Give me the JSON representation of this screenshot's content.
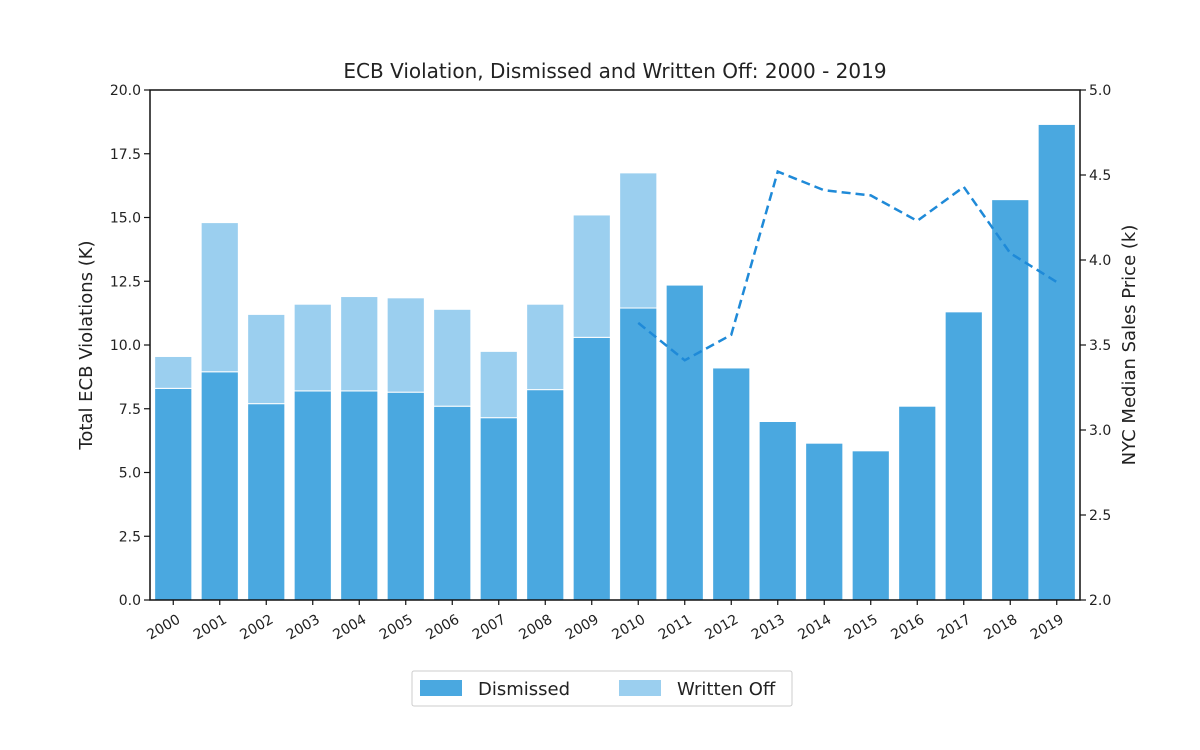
{
  "chart_data": {
    "type": "bar",
    "title": "ECB Violation, Dismissed and Written Off: 2000 - 2019",
    "xlabel": "",
    "ylabel": "Total ECB Violations (K)",
    "y2label": "NYC Median Sales Price (k)",
    "ylim": [
      0,
      20
    ],
    "y2lim": [
      2.0,
      5.0
    ],
    "yticks": [
      "0.0",
      "2.5",
      "5.0",
      "7.5",
      "10.0",
      "12.5",
      "15.0",
      "17.5",
      "20.0"
    ],
    "y2ticks": [
      "2.0",
      "2.5",
      "3.0",
      "3.5",
      "4.0",
      "4.5",
      "5.0"
    ],
    "categories": [
      "2000",
      "2001",
      "2002",
      "2003",
      "2004",
      "2005",
      "2006",
      "2007",
      "2008",
      "2009",
      "2010",
      "2011",
      "2012",
      "2013",
      "2014",
      "2015",
      "2016",
      "2017",
      "2018",
      "2019"
    ],
    "stacked": true,
    "grid": false,
    "legend_position": "bottom-center",
    "series": [
      {
        "name": "Dismissed",
        "color": "#4aa8e0",
        "values": [
          8.3,
          8.95,
          7.7,
          8.2,
          8.2,
          8.15,
          7.6,
          7.15,
          8.25,
          10.3,
          11.45,
          12.35,
          9.1,
          7.0,
          6.15,
          5.85,
          7.6,
          11.3,
          15.7,
          18.65
        ]
      },
      {
        "name": "Written Off",
        "color": "#9bcfef",
        "values": [
          1.25,
          5.85,
          3.5,
          3.4,
          3.7,
          3.7,
          3.8,
          2.6,
          3.35,
          4.8,
          5.3,
          0,
          0,
          0,
          0,
          0,
          0,
          0,
          0,
          0
        ]
      }
    ],
    "line_series": {
      "axis": "right",
      "color": "#1f8ad8",
      "style": "dashed",
      "x": [
        "2010",
        "2011",
        "2012",
        "2013",
        "2014",
        "2015",
        "2016",
        "2017",
        "2018",
        "2019"
      ],
      "values": [
        3.63,
        3.41,
        3.56,
        4.52,
        4.41,
        4.38,
        4.23,
        4.43,
        4.04,
        3.87
      ]
    }
  }
}
